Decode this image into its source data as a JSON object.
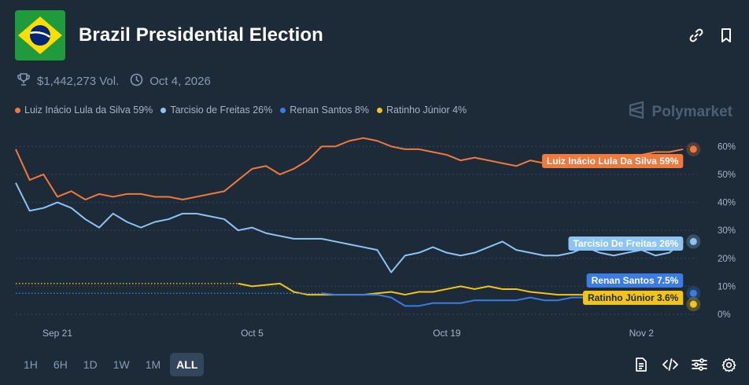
{
  "header": {
    "title": "Brazil Presidential Election",
    "flag_icon": "brazil-flag-icon"
  },
  "top_actions": [
    {
      "name": "link-icon",
      "label": "copy link"
    },
    {
      "name": "bookmark-icon",
      "label": "bookmark"
    }
  ],
  "meta": {
    "volume": "$1,442,273 Vol.",
    "date": "Oct 4, 2026",
    "volume_icon": "trophy-icon",
    "date_icon": "clock-icon"
  },
  "legend": [
    {
      "label": "Luiz Inácio Lula da Silva 59%",
      "color": "#f0793b"
    },
    {
      "label": "Tarcisio de Freitas 26%",
      "color": "#8cc4f5"
    },
    {
      "label": "Renan Santos 8%",
      "color": "#3b7ce4"
    },
    {
      "label": "Ratinho Júnior 4%",
      "color": "#f2c318"
    }
  ],
  "watermark": "Polymarket",
  "time_ranges": [
    "1H",
    "6H",
    "1D",
    "1W",
    "1M",
    "ALL"
  ],
  "active_range": "ALL",
  "bottom_actions": [
    "document-icon",
    "embed-code-icon",
    "sliders-icon",
    "gear-icon"
  ],
  "chart_data": {
    "type": "line",
    "title": "",
    "xlabel": "",
    "ylabel": "",
    "x_ticks": [
      "Sep 21",
      "Oct 5",
      "Oct 19",
      "Nov 2"
    ],
    "y_ticks": [
      "0%",
      "10%",
      "20%",
      "30%",
      "40%",
      "50%",
      "60%"
    ],
    "ylim": [
      0,
      66
    ],
    "xlim": [
      "2025-09-18",
      "2025-11-06"
    ],
    "grid": "horizontal dotted",
    "legend_position": "top-left",
    "series": [
      {
        "name": "Luiz Inácio Lula Da Silva",
        "end_label": "Luiz Inácio Lula Da Silva 59%",
        "color": "#f0793b",
        "dates": [
          "2025-09-18",
          "2025-09-19",
          "2025-09-20",
          "2025-09-21",
          "2025-09-22",
          "2025-09-23",
          "2025-09-24",
          "2025-09-25",
          "2025-09-26",
          "2025-09-27",
          "2025-09-28",
          "2025-09-29",
          "2025-09-30",
          "2025-10-01",
          "2025-10-02",
          "2025-10-03",
          "2025-10-04",
          "2025-10-05",
          "2025-10-06",
          "2025-10-07",
          "2025-10-08",
          "2025-10-09",
          "2025-10-10",
          "2025-10-11",
          "2025-10-12",
          "2025-10-13",
          "2025-10-14",
          "2025-10-15",
          "2025-10-16",
          "2025-10-17",
          "2025-10-18",
          "2025-10-19",
          "2025-10-20",
          "2025-10-21",
          "2025-10-22",
          "2025-10-23",
          "2025-10-24",
          "2025-10-25",
          "2025-10-26",
          "2025-10-27",
          "2025-10-28",
          "2025-10-29",
          "2025-10-30",
          "2025-10-31",
          "2025-11-01",
          "2025-11-02",
          "2025-11-03",
          "2025-11-04",
          "2025-11-05"
        ],
        "values": [
          59,
          48,
          50,
          42,
          44,
          41,
          43,
          42,
          43,
          43,
          42,
          42,
          41,
          42,
          43,
          44,
          48,
          52,
          53,
          50,
          52,
          55,
          60,
          60,
          62,
          63,
          62,
          60,
          59,
          59,
          58,
          57,
          55,
          56,
          55,
          54,
          53,
          55,
          54,
          53,
          53,
          54,
          55,
          55,
          56,
          57,
          58,
          58,
          59
        ]
      },
      {
        "name": "Tarcisio De Freitas",
        "end_label": "Tarcisio De Freitas 26%",
        "color": "#8cc4f5",
        "dates": [
          "2025-09-18",
          "2025-09-19",
          "2025-09-20",
          "2025-09-21",
          "2025-09-22",
          "2025-09-23",
          "2025-09-24",
          "2025-09-25",
          "2025-09-26",
          "2025-09-27",
          "2025-09-28",
          "2025-09-29",
          "2025-09-30",
          "2025-10-01",
          "2025-10-02",
          "2025-10-03",
          "2025-10-04",
          "2025-10-05",
          "2025-10-06",
          "2025-10-07",
          "2025-10-08",
          "2025-10-09",
          "2025-10-10",
          "2025-10-11",
          "2025-10-12",
          "2025-10-13",
          "2025-10-14",
          "2025-10-15",
          "2025-10-16",
          "2025-10-17",
          "2025-10-18",
          "2025-10-19",
          "2025-10-20",
          "2025-10-21",
          "2025-10-22",
          "2025-10-23",
          "2025-10-24",
          "2025-10-25",
          "2025-10-26",
          "2025-10-27",
          "2025-10-28",
          "2025-10-29",
          "2025-10-30",
          "2025-10-31",
          "2025-11-01",
          "2025-11-02",
          "2025-11-03",
          "2025-11-04",
          "2025-11-05"
        ],
        "values": [
          47,
          37,
          38,
          40,
          38,
          34,
          31,
          36,
          33,
          31,
          33,
          34,
          36,
          36,
          35,
          34,
          30,
          31,
          29,
          28,
          27,
          27,
          27,
          26,
          25,
          24,
          23,
          15,
          21,
          22,
          24,
          22,
          21,
          22,
          24,
          26,
          23,
          22,
          21,
          21,
          22,
          24,
          22,
          21,
          22,
          23,
          21,
          22,
          26
        ]
      },
      {
        "name": "Renan Santos",
        "end_label": "Renan Santos 7.5%",
        "color": "#3b7ce4",
        "dates": [
          "2025-09-18",
          "2025-10-10",
          "2025-10-11",
          "2025-10-12",
          "2025-10-13",
          "2025-10-14",
          "2025-10-15",
          "2025-10-16",
          "2025-10-17",
          "2025-10-18",
          "2025-10-19",
          "2025-10-20",
          "2025-10-21",
          "2025-10-22",
          "2025-10-23",
          "2025-10-24",
          "2025-10-25",
          "2025-10-26",
          "2025-10-27",
          "2025-10-28",
          "2025-10-29",
          "2025-10-30",
          "2025-10-31",
          "2025-11-01",
          "2025-11-02",
          "2025-11-03",
          "2025-11-04",
          "2025-11-05"
        ],
        "values": [
          7.5,
          7.5,
          7,
          7,
          7,
          7,
          6,
          3,
          3,
          4,
          4,
          4,
          5,
          5,
          5,
          5,
          6,
          5,
          5,
          6,
          6,
          7,
          7,
          7,
          7.5,
          7.5,
          7.5,
          7.5
        ],
        "note": "dotted before Oct 10"
      },
      {
        "name": "Ratinho Júnior",
        "end_label": "Ratinho Júnior 3.6%",
        "color": "#f2c318",
        "dates": [
          "2025-09-18",
          "2025-10-04",
          "2025-10-05",
          "2025-10-06",
          "2025-10-07",
          "2025-10-08",
          "2025-10-09",
          "2025-10-10",
          "2025-10-11",
          "2025-10-12",
          "2025-10-13",
          "2025-10-14",
          "2025-10-15",
          "2025-10-16",
          "2025-10-17",
          "2025-10-18",
          "2025-10-19",
          "2025-10-20",
          "2025-10-21",
          "2025-10-22",
          "2025-10-23",
          "2025-10-24",
          "2025-10-25",
          "2025-10-26",
          "2025-10-27",
          "2025-10-28",
          "2025-10-29",
          "2025-10-30",
          "2025-10-31",
          "2025-11-01",
          "2025-11-02",
          "2025-11-03",
          "2025-11-04",
          "2025-11-05"
        ],
        "values": [
          11,
          11,
          10,
          10.5,
          11,
          8,
          7,
          7,
          7,
          7,
          7,
          7.5,
          8,
          7,
          8,
          8,
          9,
          10,
          9,
          10,
          9,
          9,
          8,
          7.5,
          7,
          7,
          7,
          6.5,
          6.5,
          6.5,
          6,
          5,
          4,
          3.6
        ],
        "note": "dotted before Oct 4"
      }
    ]
  }
}
